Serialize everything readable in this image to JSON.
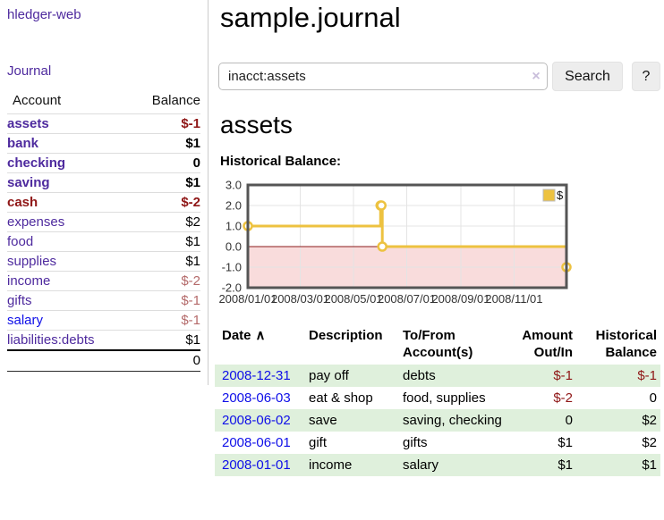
{
  "app": {
    "brand": "hledger-web"
  },
  "colors": {
    "link_purple": "#4e2a9e",
    "link_blue": "#0f0fe8",
    "negative_strong": "#8f1616",
    "negative_soft": "#b46a6a",
    "row_stripe_green": "#dff0dc",
    "chart_line_gold": "#edc240"
  },
  "sidebar": {
    "journal_link": "Journal",
    "accounts": {
      "col_account": "Account",
      "col_balance": "Balance",
      "rows": [
        {
          "name": "assets",
          "balance": "$-1"
        },
        {
          "name": "bank",
          "balance": "$1"
        },
        {
          "name": "checking",
          "balance": "0"
        },
        {
          "name": "saving",
          "balance": "$1"
        },
        {
          "name": "cash",
          "balance": "$-2"
        },
        {
          "name": "expenses",
          "balance": "$2"
        },
        {
          "name": "food",
          "balance": "$1"
        },
        {
          "name": "supplies",
          "balance": "$1"
        },
        {
          "name": "income",
          "balance": "$-2"
        },
        {
          "name": "gifts",
          "balance": "$-1"
        },
        {
          "name": "salary",
          "balance": "$-1"
        },
        {
          "name": "liabilities:debts",
          "balance": "$1"
        }
      ],
      "total": "0"
    }
  },
  "main": {
    "title": "sample.journal",
    "search": {
      "value": "inacct:assets",
      "clear_icon": "×",
      "search_button": "Search",
      "help_button": "?"
    },
    "account_heading": "assets",
    "chart_title": "Historical Balance:",
    "register": {
      "headers": {
        "date": "Date",
        "sort_icon": "∧",
        "description": "Description",
        "accounts": "To/From Account(s)",
        "amount": "Amount Out/In",
        "balance": "Historical Balance"
      },
      "rows": [
        {
          "date": "2008-12-31",
          "description": "pay off",
          "accounts": "debts",
          "amount": "$-1",
          "balance": "$-1"
        },
        {
          "date": "2008-06-03",
          "description": "eat & shop",
          "accounts": "food, supplies",
          "amount": "$-2",
          "balance": "0"
        },
        {
          "date": "2008-06-02",
          "description": "save",
          "accounts": "saving, checking",
          "amount": "0",
          "balance": "$2"
        },
        {
          "date": "2008-06-01",
          "description": "gift",
          "accounts": "gifts",
          "amount": "$1",
          "balance": "$2"
        },
        {
          "date": "2008-01-01",
          "description": "income",
          "accounts": "salary",
          "amount": "$1",
          "balance": "$1"
        }
      ]
    }
  },
  "chart_data": {
    "type": "line",
    "step": true,
    "title": "Historical Balance",
    "x_start": "2008-01-01",
    "x_end": "2008-12-31",
    "ylim": [
      -2,
      3
    ],
    "y_ticks": [
      3,
      2,
      1,
      0,
      -1,
      -2
    ],
    "y_tick_labels": [
      "3.0",
      "2.0",
      "1.0",
      "0.0",
      "-1.0",
      "-2.0"
    ],
    "x_tick_dates": [
      "2008-01-01",
      "2008-03-01",
      "2008-05-01",
      "2008-07-01",
      "2008-09-01",
      "2008-11-01"
    ],
    "x_tick_labels": [
      "2008/01/01",
      "2008/03/01",
      "2008/05/01",
      "2008/07/01",
      "2008/09/01",
      "2008/11/01"
    ],
    "grid": true,
    "negative_fill": "#f9dcdc",
    "zero_line_color": "#8b1a1a",
    "legend": {
      "label": "$",
      "position": "top-right"
    },
    "series": [
      {
        "name": "$",
        "color": "#edc240",
        "points": [
          [
            "2008-01-01",
            1
          ],
          [
            "2008-06-01",
            2
          ],
          [
            "2008-06-02",
            2
          ],
          [
            "2008-06-03",
            0
          ],
          [
            "2008-12-31",
            -1
          ]
        ]
      }
    ]
  }
}
